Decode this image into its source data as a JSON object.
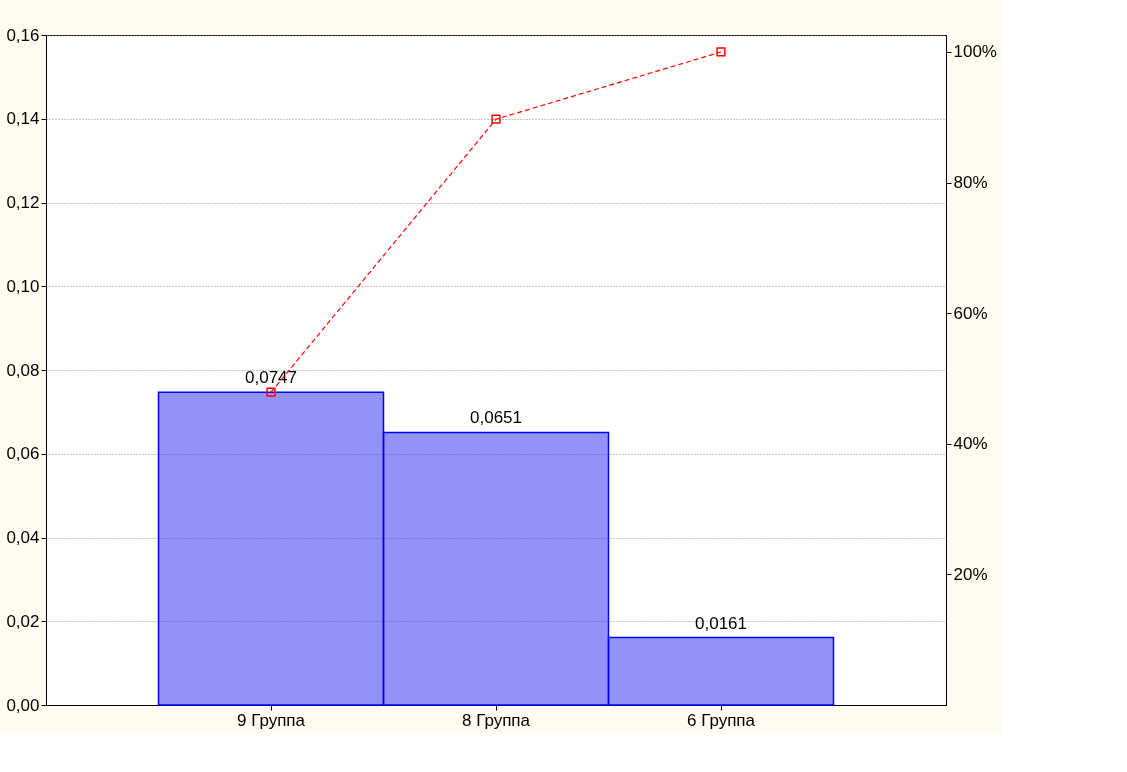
{
  "chart_data": {
    "type": "bar",
    "categories": [
      "9 Группа",
      "8 Группа",
      "6 Группа"
    ],
    "series": [
      {
        "color": "#3a3af0",
        "values": [
          0.0747,
          0.0651,
          0.0161
        ],
        "value_labels": [
          "0,0747",
          "0,0651",
          "0,0161"
        ]
      },
      {
        "type": "line",
        "axis": "y2",
        "color": "#ff0000",
        "values": [
          47.9,
          89.7,
          100
        ],
        "marker": "square",
        "line_style": "dashed"
      }
    ],
    "ylim": [
      0,
      0.16
    ],
    "yticks": [
      {
        "value": 0,
        "label": "0,00"
      },
      {
        "value": 0.02,
        "label": "0,02"
      },
      {
        "value": 0.04,
        "label": "0,04"
      },
      {
        "value": 0.06,
        "label": "0,06"
      },
      {
        "value": 0.08,
        "label": "0,08"
      },
      {
        "value": 0.1,
        "label": "0,10"
      },
      {
        "value": 0.12,
        "label": "0,12"
      },
      {
        "value": 0.14,
        "label": "0,14"
      },
      {
        "value": 0.16,
        "label": "0,16"
      }
    ],
    "y2lim": [
      0,
      102.6
    ],
    "y2ticks": [
      {
        "value": 20,
        "label": "20%"
      },
      {
        "value": 40,
        "label": "40%"
      },
      {
        "value": 60,
        "label": "60%"
      },
      {
        "value": 80,
        "label": "80%"
      },
      {
        "value": 100,
        "label": "100%"
      }
    ],
    "grid": "y"
  }
}
